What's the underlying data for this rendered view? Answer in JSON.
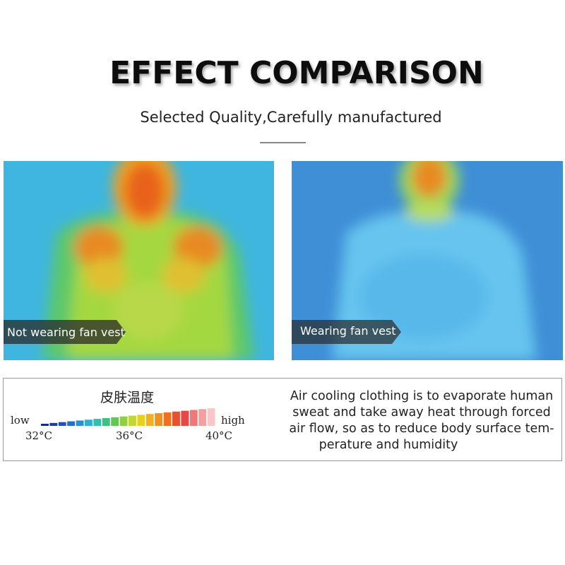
{
  "header": {
    "title": "EFFECT COMPARISON",
    "subtitle": "Selected Quality,Carefully manufactured"
  },
  "images": [
    {
      "label": "Not wearing fan vest"
    },
    {
      "label": "Wearing fan vest"
    }
  ],
  "legend": {
    "title": "皮肤温度",
    "low": "low",
    "high": "high",
    "temps": [
      "32°C",
      "36°C",
      "40°C"
    ]
  },
  "description": {
    "lines": [
      "Air cooling clothing is to evaporate human",
      "sweat and take away heat through forced",
      "air flow, so as to reduce body surface tem-",
      "perature and humidity"
    ]
  }
}
